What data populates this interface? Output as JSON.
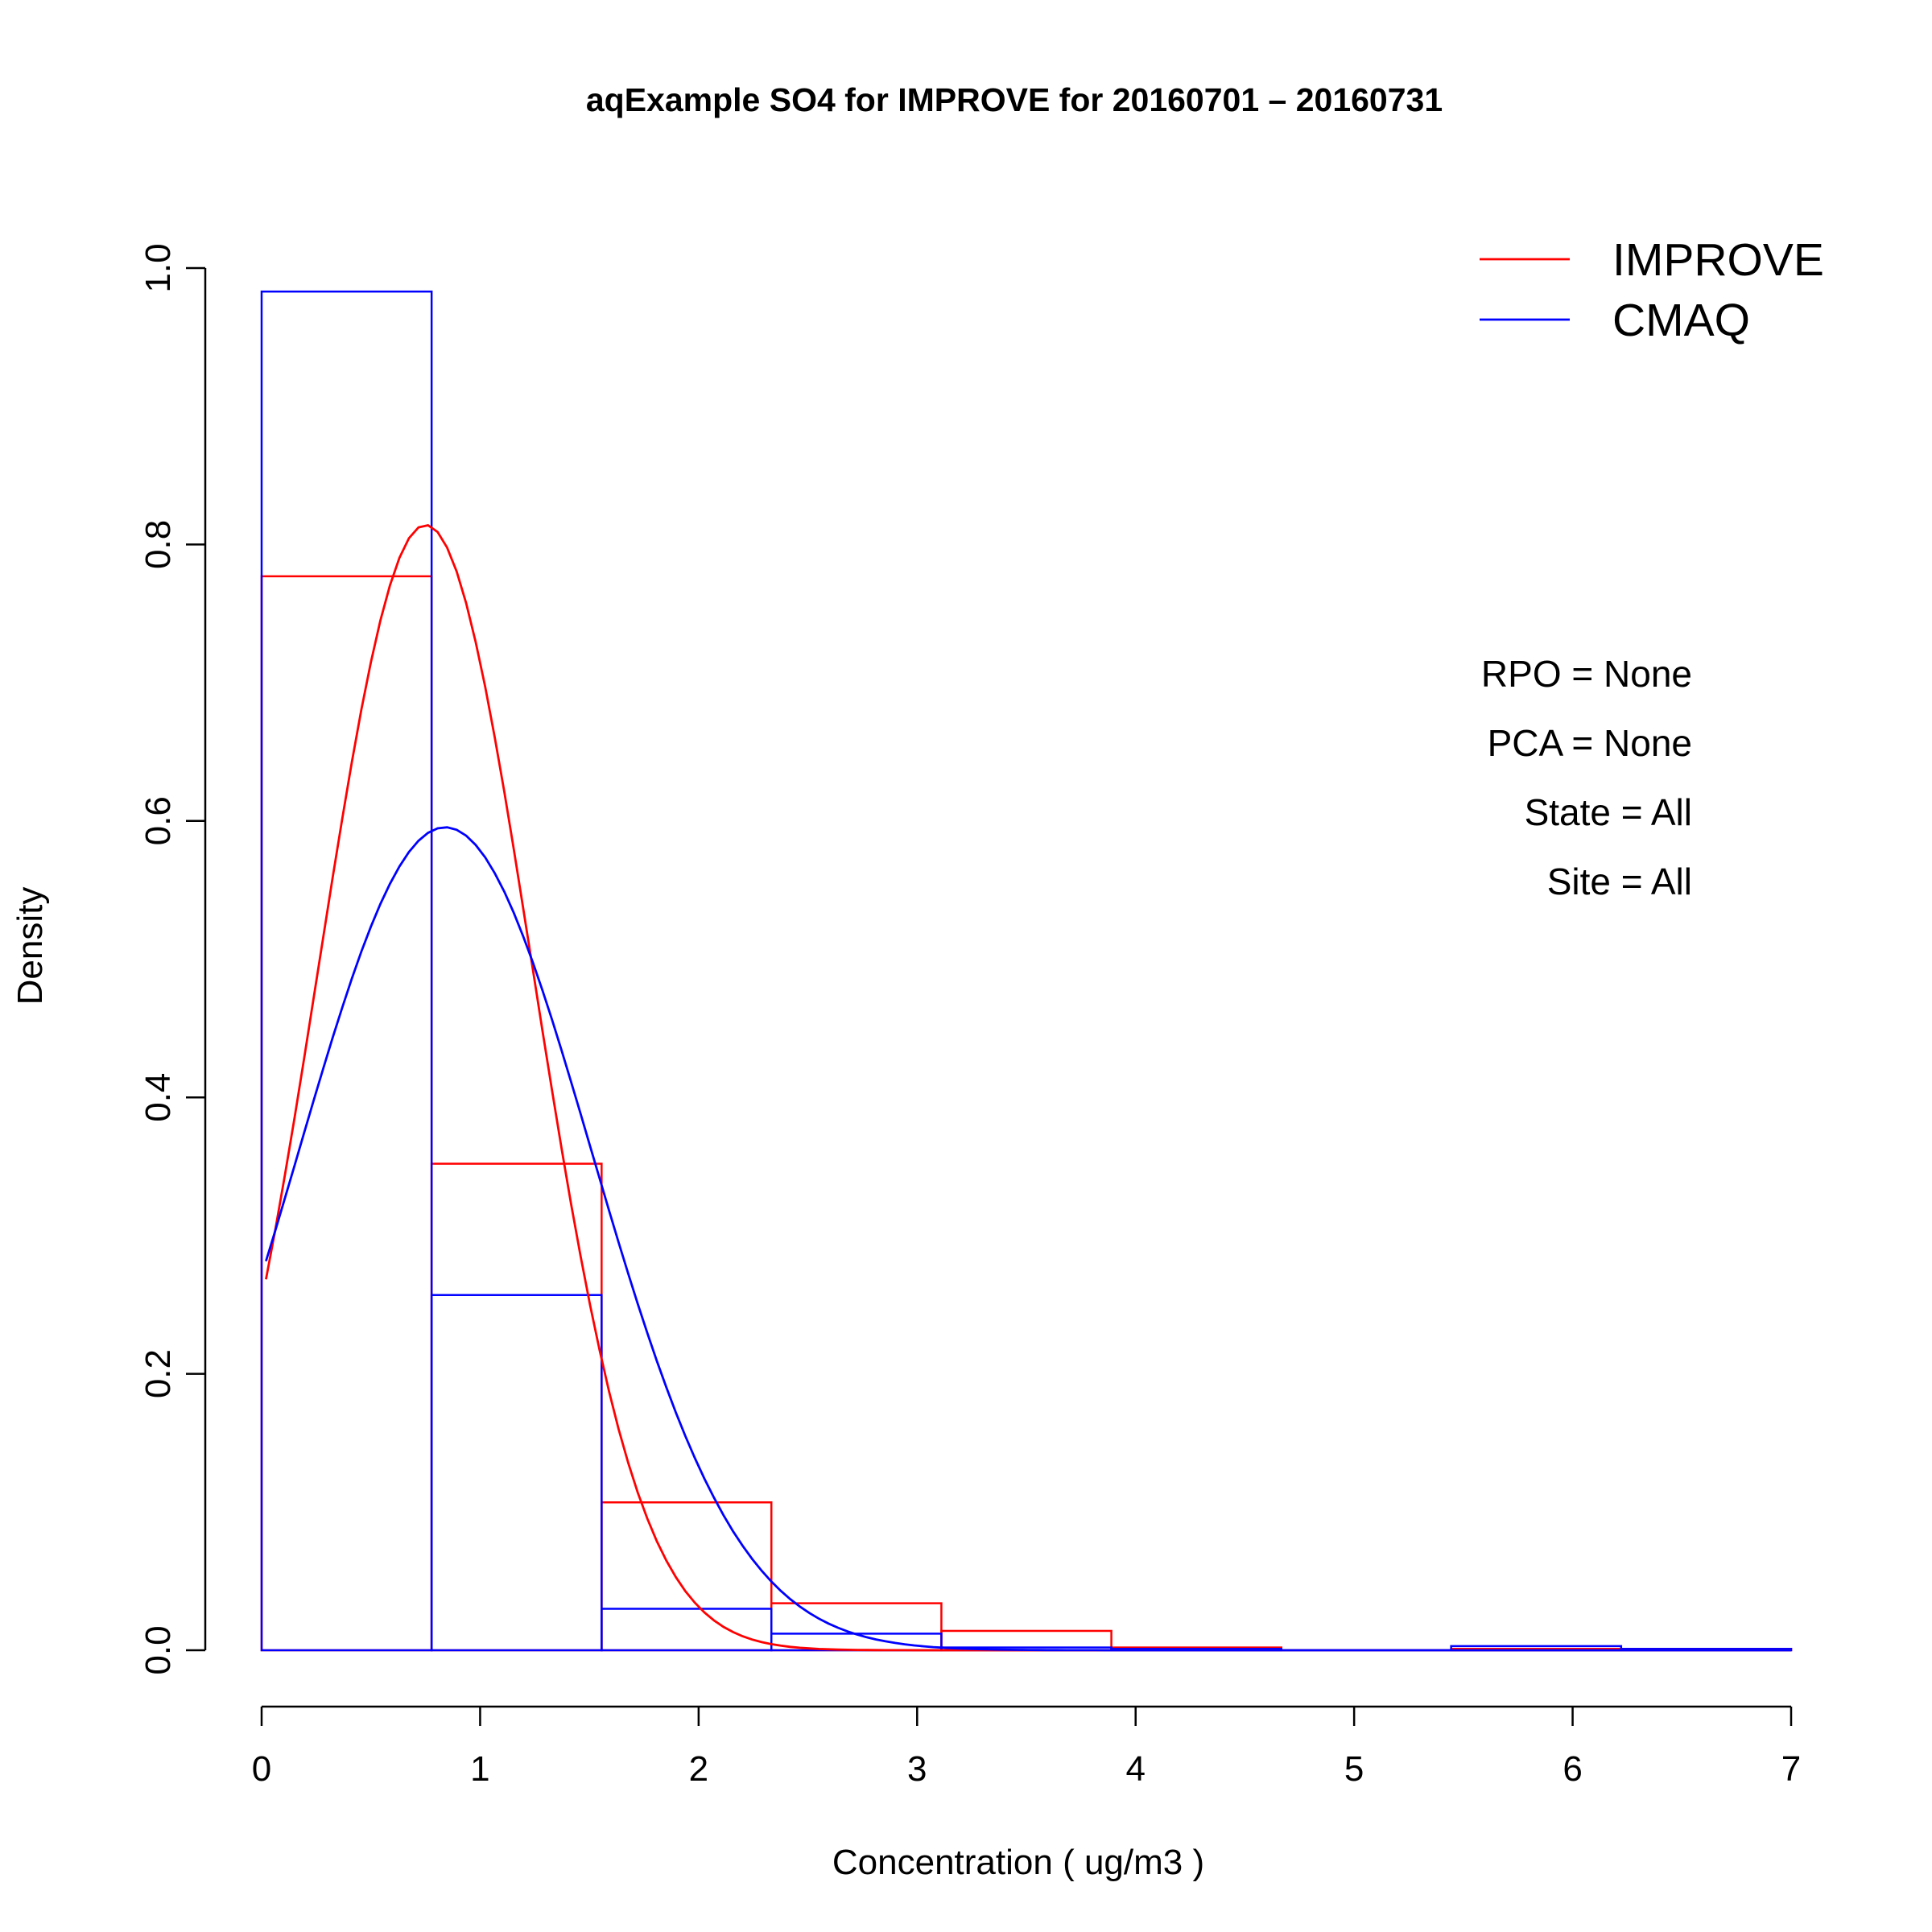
{
  "chart_data": {
    "type": "histogram",
    "title": "aqExample SO4 for IMPROVE for 20160701 – 20160731",
    "xlabel": "Concentration ( ug/m3 )",
    "ylabel": "Density",
    "xlim": [
      0,
      7
    ],
    "ylim": [
      0,
      1
    ],
    "x_ticks": [
      0,
      1,
      2,
      3,
      4,
      5,
      6,
      7
    ],
    "y_ticks": [
      0.0,
      0.2,
      0.4,
      0.6,
      0.8,
      1.0
    ],
    "y_tick_labels": [
      "0.0",
      "0.2",
      "0.4",
      "0.6",
      "0.8",
      "1.0"
    ],
    "bin_edges": [
      0,
      0.778,
      1.556,
      2.333,
      3.111,
      3.889,
      4.667,
      5.444,
      6.222,
      7.0
    ],
    "series": [
      {
        "name": "IMPROVE",
        "color": "#ff0000",
        "densities": [
          0.777,
          0.352,
          0.107,
          0.034,
          0.014,
          0.002,
          0.0,
          0.001,
          0.001
        ],
        "curve": {
          "type": "normal",
          "mean": 0.75,
          "sd": 0.49
        }
      },
      {
        "name": "CMAQ",
        "color": "#0000ff",
        "densities": [
          0.983,
          0.257,
          0.03,
          0.012,
          0.002,
          0.001,
          0.0,
          0.003,
          0.001
        ],
        "curve": {
          "type": "normal",
          "mean": 0.84,
          "sd": 0.67
        }
      }
    ],
    "legend_position": "top-right",
    "annotations": [
      "RPO = None",
      "PCA = None",
      "State = All",
      "Site = All"
    ],
    "grid": false
  }
}
